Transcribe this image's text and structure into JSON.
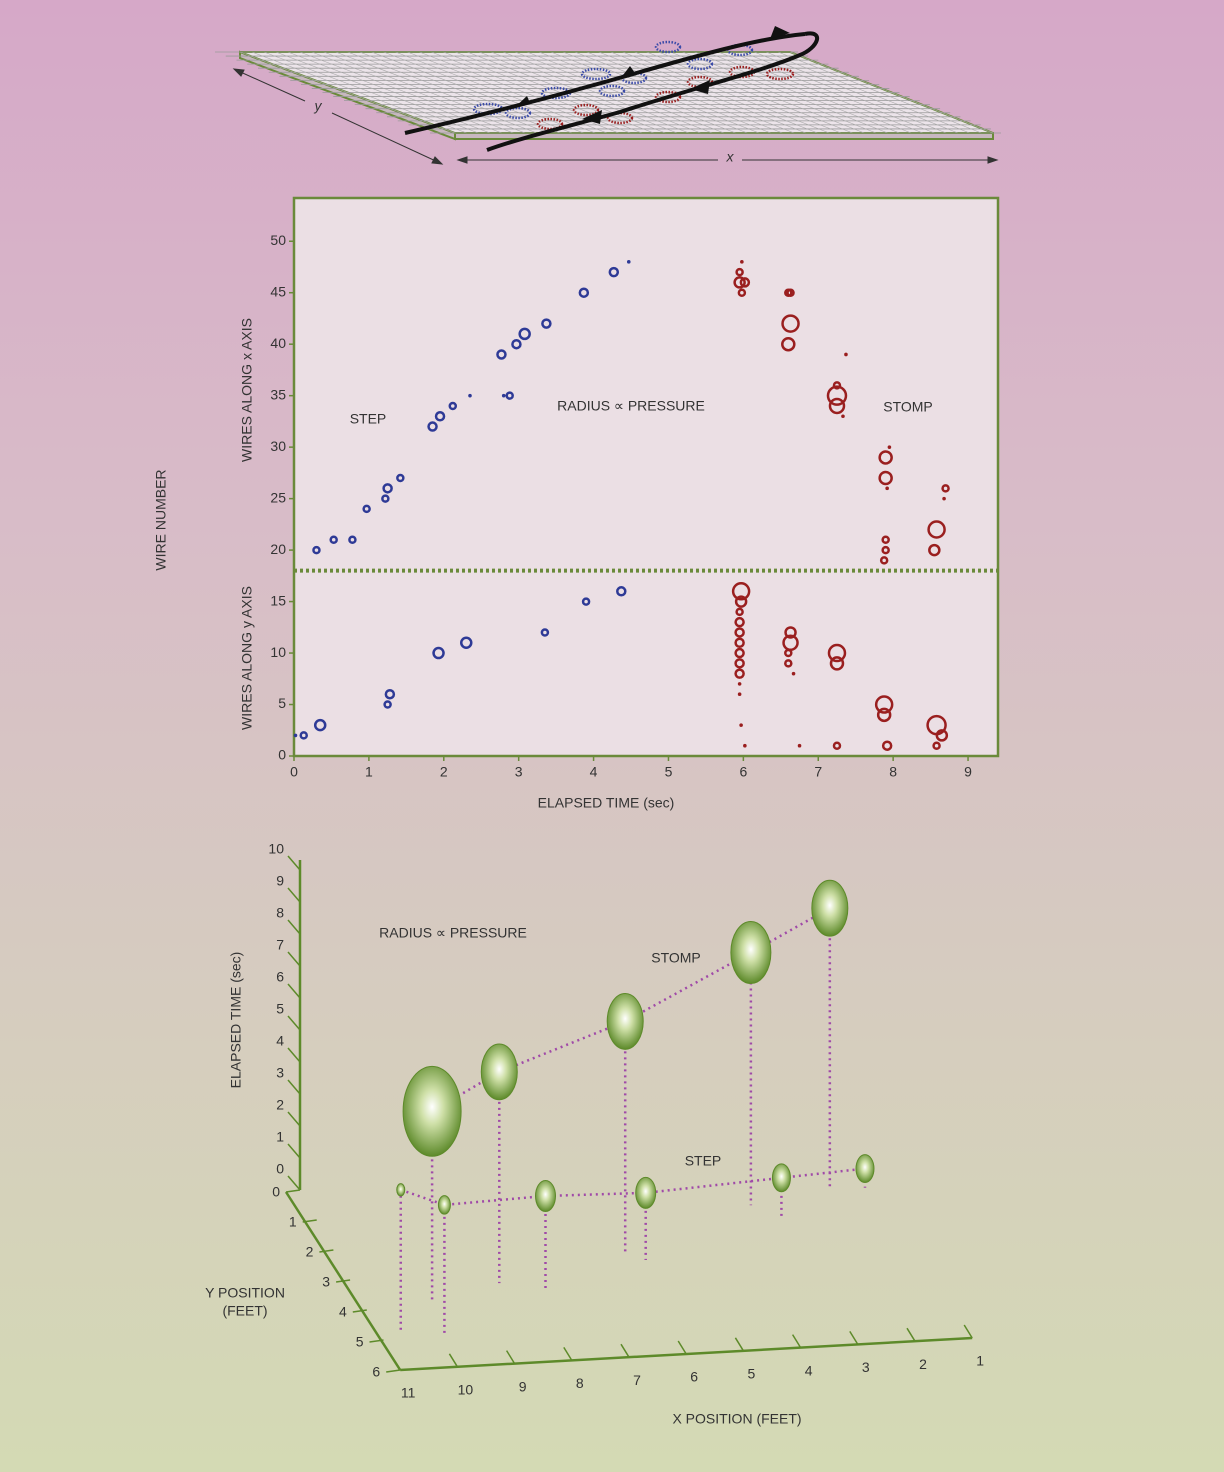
{
  "illustration": {
    "x_label": "x",
    "y_label": "y"
  },
  "chart_data": [
    {
      "type": "scatter",
      "ylabel": "WIRE NUMBER",
      "y_upper_label": "WIRES ALONG x AXIS",
      "y_lower_label": "WIRES ALONG y AXIS",
      "xlabel": "ELAPSED TIME (sec)",
      "annotation": "RADIUS ∝ PRESSURE",
      "xlim": [
        0,
        9.4
      ],
      "ylim": [
        0,
        54.2
      ],
      "xticks": [
        0,
        1,
        2,
        3,
        4,
        5,
        6,
        7,
        8,
        9
      ],
      "yticks": [
        0,
        5,
        10,
        15,
        20,
        25,
        30,
        35,
        40,
        45,
        50
      ],
      "divider": 18,
      "series": [
        {
          "name": "STEP",
          "color": "#2e3a96",
          "x": [
            0.02,
            0.13,
            0.35,
            0.3,
            0.53,
            0.78,
            0.97,
            1.22,
            1.25,
            1.42,
            1.25,
            1.28,
            1.85,
            1.95,
            2.12,
            2.35,
            1.93,
            2.3,
            2.77,
            2.97,
            3.08,
            3.37,
            2.8,
            2.88,
            3.35,
            3.87,
            3.9,
            4.27,
            4.37,
            4.47
          ],
          "values": [
            2,
            2,
            3,
            20,
            21,
            21,
            24,
            25,
            26,
            27,
            5,
            6,
            32,
            33,
            34,
            35,
            10,
            11,
            39,
            40,
            41,
            42,
            35,
            35,
            12,
            45,
            15,
            47,
            16,
            48
          ],
          "sizes": [
            1,
            3,
            5,
            3,
            3,
            3,
            3,
            3,
            4,
            3,
            3,
            4,
            4,
            4,
            3,
            1,
            5,
            5,
            4,
            4,
            5,
            4,
            1,
            3,
            3,
            4,
            3,
            4,
            4,
            1
          ]
        },
        {
          "name": "STOMP",
          "color": "#9a1f1f",
          "x": [
            5.98,
            5.95,
            5.95,
            6.02,
            5.98,
            6.6,
            6.63,
            6.63,
            6.6,
            7.37,
            7.25,
            7.25,
            7.25,
            7.33,
            7.95,
            7.9,
            7.9,
            7.92,
            7.9,
            7.9,
            7.88,
            8.7,
            8.68,
            8.58,
            8.55,
            5.97,
            5.97,
            5.95,
            5.95,
            5.95,
            5.95,
            5.95,
            5.95,
            5.95,
            5.95,
            5.95,
            5.97,
            6.02,
            6.63,
            6.63,
            6.6,
            6.6,
            6.67,
            6.75,
            7.25,
            7.25,
            7.25,
            7.88,
            7.88,
            7.92,
            8.58,
            8.65,
            8.58
          ],
          "values": [
            48,
            47,
            46,
            46,
            45,
            45,
            45,
            42,
            40,
            39,
            36,
            35,
            34,
            33,
            30,
            29,
            27,
            26,
            21,
            20,
            19,
            26,
            25,
            22,
            20,
            16,
            15,
            14,
            13,
            12,
            11,
            10,
            9,
            8,
            7,
            6,
            3,
            1,
            12,
            11,
            10,
            9,
            8,
            1,
            10,
            9,
            1,
            5,
            4,
            1,
            3,
            2,
            1
          ],
          "sizes": [
            1,
            3,
            5,
            4,
            3,
            3,
            3,
            8,
            6,
            1,
            3,
            9,
            7,
            1,
            1,
            6,
            6,
            1,
            3,
            3,
            3,
            3,
            1,
            8,
            5,
            8,
            5,
            3,
            4,
            4,
            4,
            4,
            4,
            4,
            1,
            1,
            1,
            1,
            5,
            7,
            3,
            3,
            1,
            1,
            8,
            6,
            3,
            8,
            6,
            4,
            9,
            5,
            3
          ]
        }
      ]
    },
    {
      "type": "scatter3d",
      "annotation": "RADIUS ∝ PRESSURE",
      "zlabel": "ELAPSED TIME (sec)",
      "ylabel": [
        "Y POSITION",
        "(FEET)"
      ],
      "xlabel": "X POSITION (FEET)",
      "color": "#5d8a2a",
      "xlim": [
        11,
        1
      ],
      "xticks": [
        11,
        10,
        9,
        8,
        7,
        6,
        5,
        4,
        3,
        2,
        1
      ],
      "ylim": [
        0,
        6
      ],
      "yticks": [
        0,
        1,
        2,
        3,
        4,
        5,
        6
      ],
      "zlim": [
        0,
        10
      ],
      "zticks": [
        0,
        1,
        2,
        3,
        4,
        5,
        6,
        7,
        8,
        9,
        10
      ],
      "series": [
        {
          "name": "STOMP",
          "x": [
            9.8,
            8.5,
            6.1,
            3.5,
            2.0
          ],
          "y": [
            3.8,
            3.37,
            2.69,
            1.31,
            0.9
          ],
          "values": [
            5.9,
            6.6,
            7.3,
            7.9,
            8.75
          ],
          "sizes": [
            29,
            18,
            18,
            20,
            18
          ]
        },
        {
          "name": "STEP",
          "x": [
            10.64,
            9.9,
            7.8,
            5.8,
            3.1,
            1.4
          ],
          "y": [
            4.8,
            4.88,
            3.74,
            2.89,
            1.77,
            0.95
          ],
          "values": [
            4.47,
            4.0,
            3.0,
            2.1,
            1.25,
            0.6
          ],
          "sizes": [
            4,
            6,
            10,
            10,
            9,
            9
          ]
        }
      ]
    }
  ]
}
